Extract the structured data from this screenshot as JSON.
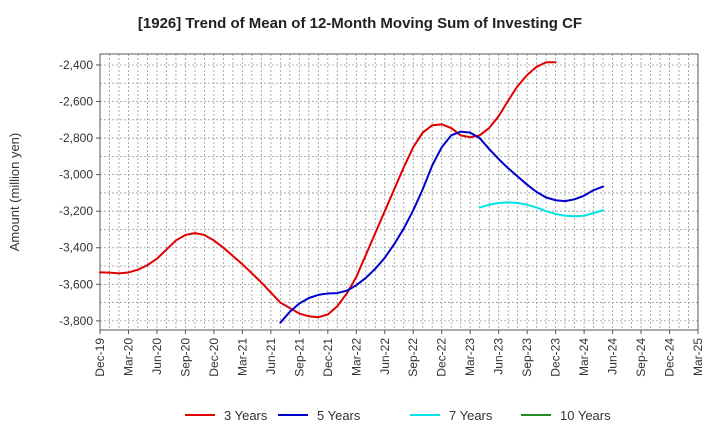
{
  "chart_data": {
    "type": "line",
    "title": "[1926]  Trend of Mean of 12-Month Moving Sum of Investing CF",
    "xlabel": "",
    "ylabel": "Amount (million yen)",
    "x_ticks": [
      "Dec-19",
      "Mar-20",
      "Jun-20",
      "Sep-20",
      "Dec-20",
      "Mar-21",
      "Jun-21",
      "Sep-21",
      "Dec-21",
      "Mar-22",
      "Jun-22",
      "Sep-22",
      "Dec-22",
      "Mar-23",
      "Jun-23",
      "Sep-23",
      "Dec-23",
      "Mar-24",
      "Jun-24",
      "Sep-24",
      "Dec-24",
      "Mar-25"
    ],
    "y_ticks": [
      "-2,400",
      "-2,600",
      "-2,800",
      "-3,000",
      "-3,200",
      "-3,400",
      "-3,600",
      "-3,800"
    ],
    "y_tick_values": [
      -2400,
      -2600,
      -2800,
      -3000,
      -3200,
      -3400,
      -3600,
      -3800
    ],
    "ylim": [
      -3850,
      -2340
    ],
    "xlim": [
      0,
      63
    ],
    "grid": true,
    "legend_position": "bottom",
    "series": [
      {
        "name": "3 Years",
        "color": "#e00000",
        "points": [
          [
            0,
            -3535
          ],
          [
            1,
            -3536
          ],
          [
            2,
            -3540
          ],
          [
            3,
            -3535
          ],
          [
            4,
            -3520
          ],
          [
            5,
            -3495
          ],
          [
            6,
            -3460
          ],
          [
            7,
            -3410
          ],
          [
            8,
            -3360
          ],
          [
            9,
            -3330
          ],
          [
            10,
            -3320
          ],
          [
            11,
            -3330
          ],
          [
            12,
            -3360
          ],
          [
            13,
            -3400
          ],
          [
            14,
            -3445
          ],
          [
            15,
            -3490
          ],
          [
            16,
            -3540
          ],
          [
            17,
            -3590
          ],
          [
            18,
            -3645
          ],
          [
            19,
            -3700
          ],
          [
            20,
            -3730
          ],
          [
            21,
            -3760
          ],
          [
            22,
            -3775
          ],
          [
            23,
            -3780
          ],
          [
            24,
            -3765
          ],
          [
            25,
            -3720
          ],
          [
            26,
            -3650
          ],
          [
            27,
            -3560
          ],
          [
            28,
            -3440
          ],
          [
            29,
            -3320
          ],
          [
            30,
            -3200
          ],
          [
            31,
            -3080
          ],
          [
            32,
            -2960
          ],
          [
            33,
            -2850
          ],
          [
            34,
            -2770
          ],
          [
            35,
            -2730
          ],
          [
            36,
            -2725
          ],
          [
            37,
            -2745
          ],
          [
            38,
            -2785
          ],
          [
            39,
            -2795
          ],
          [
            40,
            -2785
          ],
          [
            41,
            -2745
          ],
          [
            42,
            -2680
          ],
          [
            43,
            -2595
          ],
          [
            44,
            -2515
          ],
          [
            45,
            -2455
          ],
          [
            46,
            -2410
          ],
          [
            47,
            -2385
          ],
          [
            48,
            -2385
          ]
        ]
      },
      {
        "name": "5 Years",
        "color": "#0000cc",
        "points": [
          [
            19,
            -3810
          ],
          [
            20,
            -3750
          ],
          [
            21,
            -3705
          ],
          [
            22,
            -3675
          ],
          [
            23,
            -3658
          ],
          [
            24,
            -3650
          ],
          [
            25,
            -3648
          ],
          [
            26,
            -3635
          ],
          [
            27,
            -3605
          ],
          [
            28,
            -3565
          ],
          [
            29,
            -3515
          ],
          [
            30,
            -3455
          ],
          [
            31,
            -3380
          ],
          [
            32,
            -3295
          ],
          [
            33,
            -3195
          ],
          [
            34,
            -3080
          ],
          [
            35,
            -2950
          ],
          [
            36,
            -2850
          ],
          [
            37,
            -2785
          ],
          [
            38,
            -2765
          ],
          [
            39,
            -2770
          ],
          [
            40,
            -2800
          ],
          [
            41,
            -2860
          ],
          [
            42,
            -2915
          ],
          [
            43,
            -2965
          ],
          [
            44,
            -3010
          ],
          [
            45,
            -3055
          ],
          [
            46,
            -3095
          ],
          [
            47,
            -3125
          ],
          [
            48,
            -3140
          ],
          [
            49,
            -3145
          ],
          [
            50,
            -3135
          ],
          [
            51,
            -3115
          ],
          [
            52,
            -3085
          ],
          [
            53,
            -3065
          ]
        ]
      },
      {
        "name": "7 Years",
        "color": "#00e5e5",
        "points": [
          [
            40,
            -3180
          ],
          [
            41,
            -3165
          ],
          [
            42,
            -3155
          ],
          [
            43,
            -3152
          ],
          [
            44,
            -3155
          ],
          [
            45,
            -3165
          ],
          [
            46,
            -3180
          ],
          [
            47,
            -3200
          ],
          [
            48,
            -3215
          ],
          [
            49,
            -3225
          ],
          [
            50,
            -3228
          ],
          [
            51,
            -3225
          ],
          [
            52,
            -3210
          ],
          [
            53,
            -3195
          ]
        ]
      },
      {
        "name": "10 Years",
        "color": "#228b22",
        "points": []
      }
    ]
  }
}
